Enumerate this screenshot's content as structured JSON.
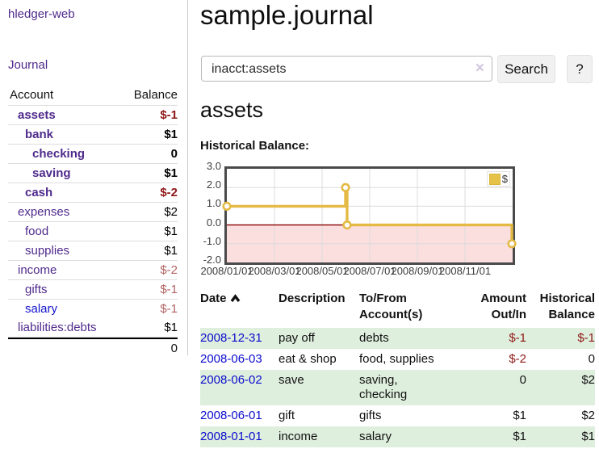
{
  "app": {
    "brand": "hledger-web",
    "nav": {
      "journal": "Journal"
    }
  },
  "sidebar": {
    "accounts_header": {
      "account": "Account",
      "balance": "Balance"
    },
    "accounts": [
      {
        "name": "assets",
        "balance": "$-1",
        "level": 1,
        "bold": true,
        "balance_style": "neg-strong"
      },
      {
        "name": "bank",
        "balance": "$1",
        "level": 2,
        "bold": true,
        "balance_style": ""
      },
      {
        "name": "checking",
        "balance": "0",
        "level": 3,
        "bold": true,
        "balance_style": ""
      },
      {
        "name": "saving",
        "balance": "$1",
        "level": 3,
        "bold": true,
        "balance_style": ""
      },
      {
        "name": "cash",
        "balance": "$-2",
        "level": 2,
        "bold": true,
        "balance_style": "neg-strong"
      },
      {
        "name": "expenses",
        "balance": "$2",
        "level": 1,
        "bold": false,
        "balance_style": ""
      },
      {
        "name": "food",
        "balance": "$1",
        "level": 2,
        "bold": false,
        "balance_style": ""
      },
      {
        "name": "supplies",
        "balance": "$1",
        "level": 2,
        "bold": false,
        "balance_style": ""
      },
      {
        "name": "income",
        "balance": "$-2",
        "level": 1,
        "bold": false,
        "balance_style": "neg-muted"
      },
      {
        "name": "gifts",
        "balance": "$-1",
        "level": 2,
        "bold": false,
        "balance_style": "neg-muted"
      },
      {
        "name": "salary",
        "balance": "$-1",
        "level": 2,
        "bold": false,
        "balance_style": "neg-muted",
        "link": "blue"
      },
      {
        "name": "liabilities:debts",
        "balance": "$1",
        "level": 1,
        "bold": false,
        "balance_style": ""
      }
    ],
    "total": "0"
  },
  "main": {
    "title": "sample.journal",
    "search": {
      "query": "inacct:assets",
      "clear_icon": "×",
      "button": "Search",
      "help_button": "?"
    },
    "account_title": "assets",
    "chart_heading": "Historical Balance:"
  },
  "chart_data": {
    "type": "line",
    "subtype": "step",
    "title": "Historical Balance",
    "series": [
      {
        "name": "$",
        "color": "#e4ba45",
        "points": [
          {
            "date": "2008-01-01",
            "value": 1
          },
          {
            "date": "2008-06-01",
            "value": 2
          },
          {
            "date": "2008-06-03",
            "value": 0
          },
          {
            "date": "2008-12-31",
            "value": -1
          }
        ]
      }
    ],
    "x_range": [
      "2008-01-01",
      "2009-01-01"
    ],
    "x_ticks": [
      "2008/01/01",
      "2008/03/01",
      "2008/05/01",
      "2008/07/01",
      "2008/09/01",
      "2008/11/01"
    ],
    "y_ticks": [
      "3.0",
      "2.0",
      "1.0",
      "0.0",
      "-1.0",
      "-2.0"
    ],
    "ylim": [
      -2,
      3
    ],
    "grid": true,
    "legend": {
      "label": "$",
      "position": "top-right"
    },
    "colors": {
      "line": "#e4ba45",
      "marker_fill": "#ffffff",
      "negative_fill": "#fbdede",
      "zero_line": "#8b0000",
      "grid": "#dcdcdc",
      "border": "#4a4a4a"
    }
  },
  "register": {
    "headers": {
      "date": "Date",
      "description": "Description",
      "tofrom": "To/From Account(s)",
      "amount": "Amount Out/In",
      "balance": "Historical Balance"
    },
    "rows": [
      {
        "date": "2008-12-31",
        "description": "pay off",
        "accounts": "debts",
        "amount": "$-1",
        "balance": "$-1",
        "shaded": true
      },
      {
        "date": "2008-06-03",
        "description": "eat & shop",
        "accounts": "food, supplies",
        "amount": "$-2",
        "balance": "0",
        "shaded": false
      },
      {
        "date": "2008-06-02",
        "description": "save",
        "accounts": "saving,\nchecking",
        "amount": "0",
        "balance": "$2",
        "shaded": true
      },
      {
        "date": "2008-06-01",
        "description": "gift",
        "accounts": "gifts",
        "amount": "$1",
        "balance": "$2",
        "shaded": false
      },
      {
        "date": "2008-01-01",
        "description": "income",
        "accounts": "salary",
        "amount": "$1",
        "balance": "$1",
        "shaded": true
      }
    ]
  },
  "colors": {
    "link_purple": "#4f2a8c",
    "link_blue": "#0b0bcd",
    "negative_strong": "#8f1616",
    "negative_muted": "#b26262",
    "row_green": "#dfefdd"
  }
}
